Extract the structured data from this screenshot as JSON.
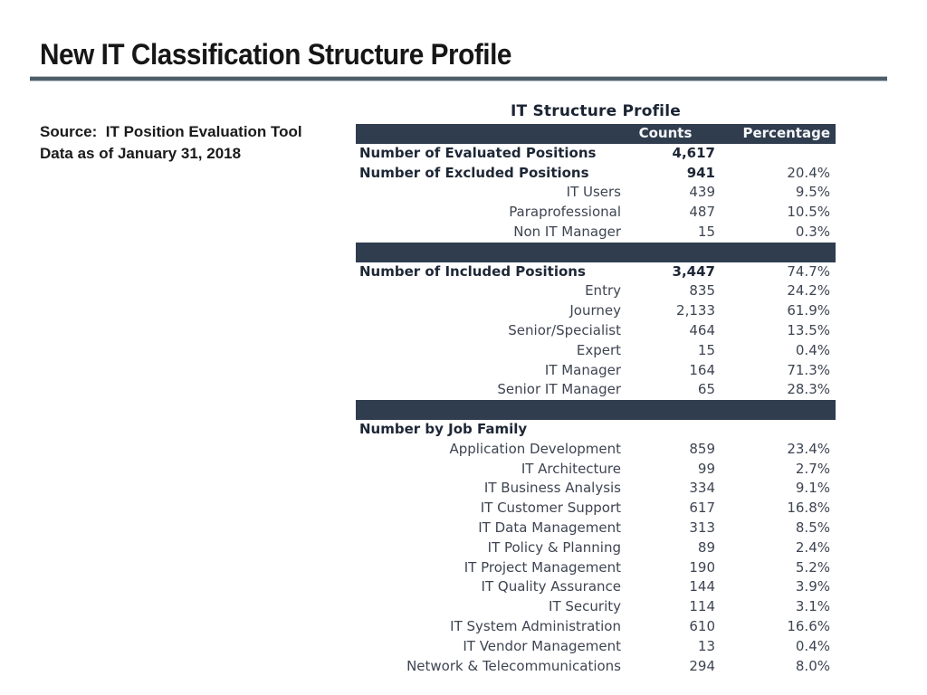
{
  "slide": {
    "title": "New IT Classification Structure Profile",
    "source_line1": "Source:  IT Position Evaluation Tool",
    "source_line2": "Data as of January 31, 2018"
  },
  "table": {
    "title": "IT Structure Profile",
    "columns": {
      "counts": "Counts",
      "percentage": "Percentage"
    },
    "rows": [
      {
        "type": "total",
        "label": "Number of Evaluated Positions",
        "counts": "4,617",
        "pct": ""
      },
      {
        "type": "total",
        "label": "Number of Excluded Positions",
        "counts": "941",
        "pct": "20.4%"
      },
      {
        "type": "item",
        "label": "IT Users",
        "counts": "439",
        "pct": "9.5%"
      },
      {
        "type": "item",
        "label": "Paraprofessional",
        "counts": "487",
        "pct": "10.5%"
      },
      {
        "type": "item",
        "label": "Non IT Manager",
        "counts": "15",
        "pct": "0.3%"
      },
      {
        "type": "separator"
      },
      {
        "type": "total",
        "label": "Number of Included Positions",
        "counts": "3,447",
        "pct": "74.7%"
      },
      {
        "type": "item",
        "label": "Entry",
        "counts": "835",
        "pct": "24.2%"
      },
      {
        "type": "item",
        "label": "Journey",
        "counts": "2,133",
        "pct": "61.9%"
      },
      {
        "type": "item",
        "label": "Senior/Specialist",
        "counts": "464",
        "pct": "13.5%"
      },
      {
        "type": "item",
        "label": "Expert",
        "counts": "15",
        "pct": "0.4%"
      },
      {
        "type": "item",
        "label": "IT Manager",
        "counts": "164",
        "pct": "71.3%"
      },
      {
        "type": "item",
        "label": "Senior IT Manager",
        "counts": "65",
        "pct": "28.3%"
      },
      {
        "type": "separator"
      },
      {
        "type": "total",
        "label": "Number by Job Family",
        "counts": "",
        "pct": ""
      },
      {
        "type": "item",
        "label": "Application Development",
        "counts": "859",
        "pct": "23.4%"
      },
      {
        "type": "item",
        "label": "IT Architecture",
        "counts": "99",
        "pct": "2.7%"
      },
      {
        "type": "item",
        "label": "IT Business Analysis",
        "counts": "334",
        "pct": "9.1%"
      },
      {
        "type": "item",
        "label": "IT Customer Support",
        "counts": "617",
        "pct": "16.8%"
      },
      {
        "type": "item",
        "label": "IT Data Management",
        "counts": "313",
        "pct": "8.5%"
      },
      {
        "type": "item",
        "label": "IT Policy & Planning",
        "counts": "89",
        "pct": "2.4%"
      },
      {
        "type": "item",
        "label": "IT Project Management",
        "counts": "190",
        "pct": "5.2%"
      },
      {
        "type": "item",
        "label": "IT Quality Assurance",
        "counts": "144",
        "pct": "3.9%"
      },
      {
        "type": "item",
        "label": "IT Security",
        "counts": "114",
        "pct": "3.1%"
      },
      {
        "type": "item",
        "label": "IT System Administration",
        "counts": "610",
        "pct": "16.6%"
      },
      {
        "type": "item",
        "label": "IT Vendor Management",
        "counts": "13",
        "pct": "0.4%"
      },
      {
        "type": "item",
        "label": "Network & Telecommunications",
        "counts": "294",
        "pct": "8.0%"
      }
    ]
  },
  "theme": {
    "header_bg": "#303d4f",
    "header_text": "#f5f6f8",
    "total_text": "#1e2736",
    "item_text": "#3e4552",
    "rule_color": "#4e5e6b",
    "title_color": "#161616",
    "note_color": "#1a1a1a",
    "table_title_color": "#1b2433"
  }
}
